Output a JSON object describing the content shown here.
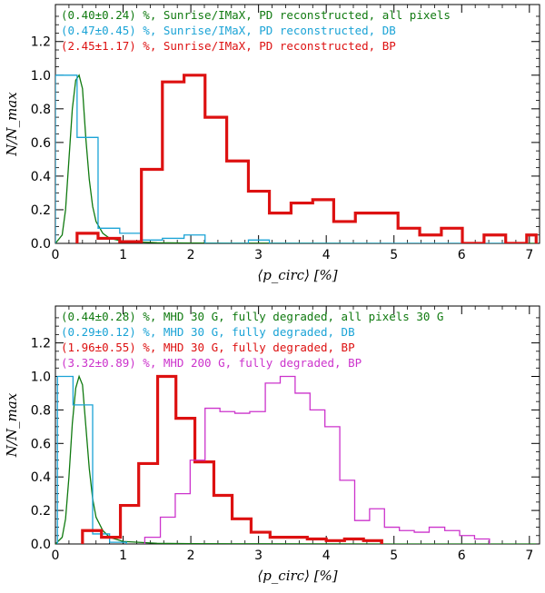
{
  "chart_data": [
    {
      "type": "histogram",
      "ylabel": "N/N_max",
      "xlabel": "⟨p_circ⟩ [%]",
      "xlim": [
        0,
        7.15
      ],
      "ylim": [
        0,
        1.42
      ],
      "xticks": [
        "0",
        "1",
        "2",
        "3",
        "4",
        "5",
        "6",
        "7"
      ],
      "yticks": [
        "0.0",
        "0.2",
        "0.4",
        "0.6",
        "0.8",
        "1.0",
        "1.2"
      ],
      "legend": [
        {
          "text": "(0.40±0.24) %, Sunrise/IMaX, PD reconstructed, all pixels",
          "color": "#107a10"
        },
        {
          "text": "(0.47±0.45) %, Sunrise/IMaX, PD reconstructed, DB",
          "color": "#1aa3d6"
        },
        {
          "text": "(2.45±1.17) %, Sunrise/IMaX, PD reconstructed, BP",
          "color": "#dd1111"
        }
      ],
      "series": [
        {
          "name": "all pixels",
          "kind": "line",
          "color": "#107a10",
          "width": 1.3,
          "x": [
            0,
            0.1,
            0.15,
            0.2,
            0.25,
            0.3,
            0.35,
            0.4,
            0.45,
            0.5,
            0.55,
            0.6,
            0.7,
            0.8,
            1.0,
            1.5,
            2.0,
            3.0,
            5.0,
            7.1
          ],
          "y": [
            0,
            0.05,
            0.2,
            0.5,
            0.8,
            0.97,
            1.0,
            0.92,
            0.62,
            0.38,
            0.22,
            0.13,
            0.06,
            0.03,
            0.012,
            0.004,
            0.002,
            0.001,
            0,
            0
          ]
        },
        {
          "name": "DB",
          "kind": "step",
          "color": "#1aa3d6",
          "width": 1.3,
          "edges": [
            0,
            0.32,
            0.63,
            0.95,
            1.27,
            1.58,
            1.9,
            2.21,
            2.53,
            2.85,
            3.16,
            3.48,
            3.8,
            4.11,
            4.43,
            4.75,
            5.06,
            5.38,
            5.7,
            6.01,
            6.33,
            6.65,
            6.96
          ],
          "values": [
            1.0,
            0.63,
            0.09,
            0.06,
            0.02,
            0.03,
            0.05,
            0,
            0,
            0.02,
            0,
            0,
            0,
            0,
            0,
            0,
            0,
            0,
            0,
            0,
            0,
            0
          ]
        },
        {
          "name": "BP",
          "kind": "step",
          "color": "#dd1111",
          "width": 3.2,
          "edges": [
            0.32,
            0.63,
            0.95,
            1.27,
            1.58,
            1.9,
            2.21,
            2.53,
            2.85,
            3.16,
            3.48,
            3.8,
            4.11,
            4.43,
            4.75,
            5.06,
            5.38,
            5.7,
            6.01,
            6.33,
            6.65,
            6.96,
            7.1
          ],
          "values": [
            0.06,
            0.03,
            0.01,
            0.44,
            0.96,
            1.0,
            0.75,
            0.49,
            0.31,
            0.18,
            0.24,
            0.26,
            0.13,
            0.18,
            0.18,
            0.09,
            0.05,
            0.09,
            0,
            0.05,
            0,
            0.05
          ]
        }
      ]
    },
    {
      "type": "histogram",
      "ylabel": "N/N_max",
      "xlabel": "⟨p_circ⟩ [%]",
      "xlim": [
        0,
        7.15
      ],
      "ylim": [
        0,
        1.42
      ],
      "xticks": [
        "0",
        "1",
        "2",
        "3",
        "4",
        "5",
        "6",
        "7"
      ],
      "yticks": [
        "0.0",
        "0.2",
        "0.4",
        "0.6",
        "0.8",
        "1.0",
        "1.2"
      ],
      "legend": [
        {
          "text": "(0.44±0.28) %, MHD  30 G, fully degraded, all pixels 30 G",
          "color": "#107a10"
        },
        {
          "text": "(0.29±0.12) %, MHD  30 G, fully degraded, DB",
          "color": "#1aa3d6"
        },
        {
          "text": "(1.96±0.55) %, MHD  30 G, fully degraded, BP",
          "color": "#dd1111"
        },
        {
          "text": "(3.32±0.89) %, MHD 200 G, fully degraded, BP",
          "color": "#cc33cc"
        }
      ],
      "series": [
        {
          "name": "all pixels 30 G",
          "kind": "line",
          "color": "#107a10",
          "width": 1.3,
          "x": [
            0,
            0.1,
            0.15,
            0.2,
            0.25,
            0.3,
            0.35,
            0.4,
            0.45,
            0.5,
            0.55,
            0.6,
            0.7,
            0.8,
            1.0,
            1.5,
            2.0,
            3.0,
            5.0,
            7.1
          ],
          "y": [
            0,
            0.04,
            0.15,
            0.4,
            0.72,
            0.93,
            1.0,
            0.95,
            0.7,
            0.45,
            0.27,
            0.16,
            0.08,
            0.04,
            0.015,
            0.004,
            0.002,
            0.001,
            0,
            0
          ]
        },
        {
          "name": "DB 30 G",
          "kind": "step",
          "color": "#1aa3d6",
          "width": 1.3,
          "edges": [
            0.03,
            0.26,
            0.55,
            0.8,
            1.05
          ],
          "values": [
            1.0,
            0.83,
            0.06,
            0.01
          ]
        },
        {
          "name": "BP 30 G",
          "kind": "step",
          "color": "#dd1111",
          "width": 3.2,
          "edges": [
            0.4,
            0.68,
            0.96,
            1.23,
            1.51,
            1.78,
            2.06,
            2.34,
            2.61,
            2.89,
            3.17,
            3.44,
            3.72,
            4.0,
            4.27,
            4.55,
            4.82
          ],
          "values": [
            0.08,
            0.04,
            0.23,
            0.48,
            1.0,
            0.75,
            0.49,
            0.29,
            0.15,
            0.07,
            0.04,
            0.04,
            0.03,
            0.02,
            0.03,
            0.02
          ]
        },
        {
          "name": "BP 200 G",
          "kind": "step",
          "color": "#cc33cc",
          "width": 1.3,
          "edges": [
            1.32,
            1.55,
            1.77,
            1.99,
            2.21,
            2.43,
            2.65,
            2.87,
            3.1,
            3.32,
            3.54,
            3.76,
            3.98,
            4.2,
            4.42,
            4.64,
            4.86,
            5.08,
            5.3,
            5.52,
            5.75,
            5.97,
            6.19,
            6.41
          ],
          "values": [
            0.04,
            0.16,
            0.3,
            0.5,
            0.81,
            0.79,
            0.78,
            0.79,
            0.96,
            1.0,
            0.9,
            0.8,
            0.7,
            0.38,
            0.14,
            0.21,
            0.1,
            0.08,
            0.07,
            0.1,
            0.08,
            0.05,
            0.03
          ]
        }
      ]
    }
  ]
}
